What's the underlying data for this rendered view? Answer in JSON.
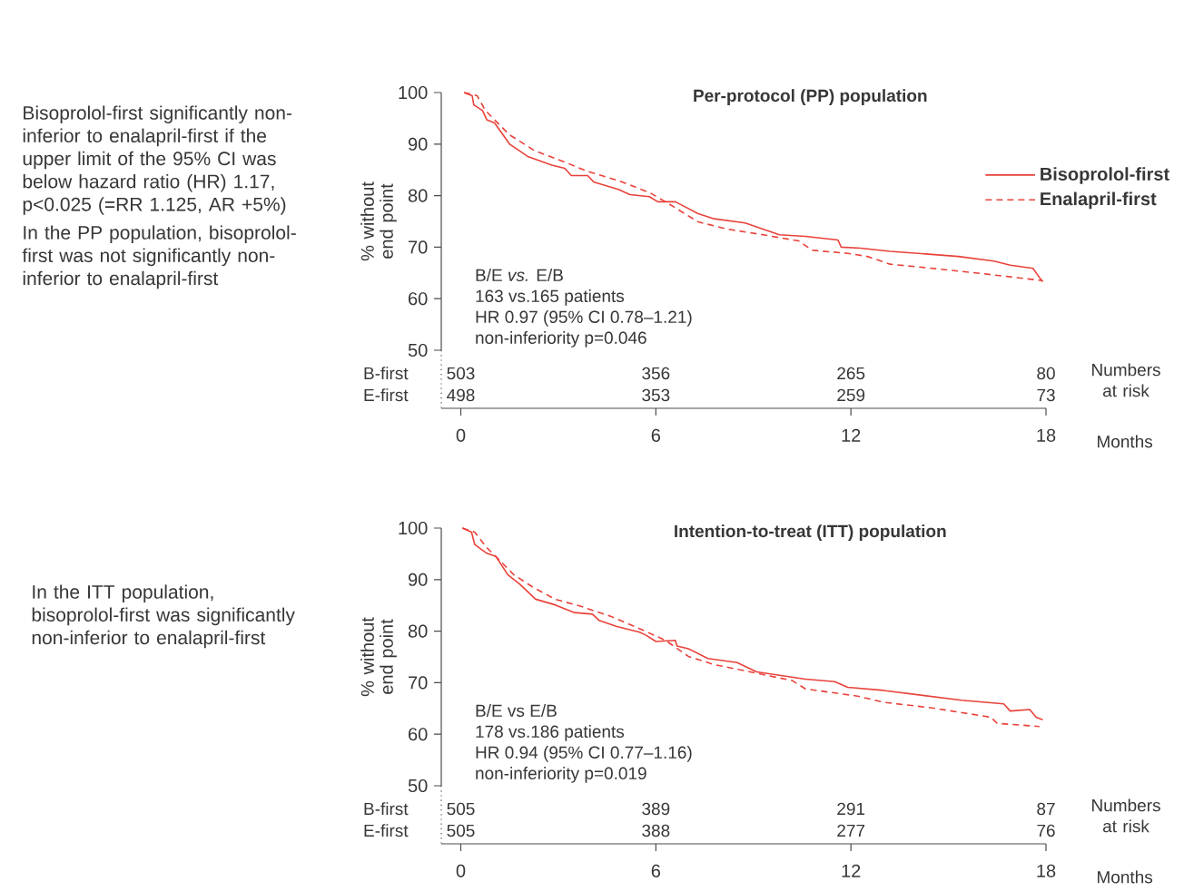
{
  "chart_data": [
    {
      "type": "line",
      "title": "Per-protocol (PP) population",
      "xlabel": "Months",
      "ylabel": "% without end point",
      "xlim": [
        -0.6,
        18
      ],
      "ylim": [
        50,
        100
      ],
      "xticks": [
        0,
        6,
        12,
        18
      ],
      "yticks": [
        50,
        60,
        70,
        80,
        90,
        100
      ],
      "legend": "top right",
      "grid": false,
      "series": [
        {
          "name": "Bisoprolol-first",
          "color": "#e8423a",
          "line_style": "solid",
          "x": [
            0.1,
            0.35,
            0.4,
            0.67,
            0.8,
            1.04,
            1.5,
            2.06,
            2.8,
            3.2,
            3.4,
            3.9,
            4.1,
            4.85,
            5.2,
            5.8,
            6.06,
            6.6,
            7.3,
            7.8,
            8.75,
            9.8,
            10.6,
            11.6,
            11.7,
            12.3,
            13.2,
            15.3,
            16.4,
            16.9,
            17.6,
            17.8,
            17.9
          ],
          "values": [
            100,
            99.4,
            97.6,
            96.5,
            94.7,
            94.1,
            90,
            87.6,
            85.9,
            85.3,
            83.9,
            83.9,
            82.6,
            81.2,
            80.2,
            79.8,
            78.8,
            78.8,
            76.5,
            75.5,
            74.7,
            72.4,
            72.1,
            71.4,
            70,
            69.8,
            69.2,
            68.2,
            67.3,
            66.5,
            65.9,
            64.1,
            63.3
          ]
        },
        {
          "name": "Enalapril-first",
          "color": "#e8423a",
          "line_style": "dashed",
          "x": [
            0.1,
            0.5,
            0.76,
            1.23,
            1.5,
            2.25,
            3.2,
            3.9,
            4.85,
            5.8,
            6.3,
            7.3,
            8.2,
            9.3,
            10.4,
            10.8,
            11.9,
            12.5,
            13.2,
            14.5,
            16,
            17.9
          ],
          "values": [
            100,
            99.4,
            96.5,
            93.5,
            91.8,
            88.8,
            86.5,
            84.7,
            82.9,
            80.6,
            78.8,
            74.9,
            73.5,
            72.4,
            71.2,
            69.4,
            68.8,
            68.2,
            66.7,
            65.9,
            64.9,
            63.5
          ]
        }
      ],
      "annotations": [
        "Bisoprolol-first significantly non-inferior to enalapril-first if the upper limit of the 95% CI was below hazard ratio (HR) 1.17, p<0.025 (=RR 1.125, AR +5%)",
        "In the PP population, bisoprolol-first was not significantly non-inferior to enalapril-first",
        "B/E *vs.* E/B",
        "163 vs.165 patients",
        "HR 0.97 (95% CI 0.78–1.21)",
        "non-inferiority p=0.046",
        "B-first",
        "503",
        "356",
        "265",
        "80",
        "E-first",
        "498",
        "353",
        "259",
        "73",
        "Numbers at risk"
      ]
    },
    {
      "type": "line",
      "title": "Intention-to-treat (ITT) population",
      "xlabel": "Months",
      "ylabel": "% without end point",
      "xlim": [
        -0.6,
        18
      ],
      "ylim": [
        50,
        100
      ],
      "xticks": [
        0,
        6,
        12,
        18
      ],
      "yticks": [
        50,
        60,
        70,
        80,
        90,
        100
      ],
      "grid": false,
      "series": [
        {
          "color": "#e8423a",
          "line_style": "solid",
          "x": [
            0.05,
            0.33,
            0.43,
            0.8,
            1.08,
            1.45,
            1.8,
            2,
            2.3,
            2.9,
            3.5,
            4.05,
            4.25,
            4.8,
            5.5,
            5.7,
            6,
            6.6,
            6.65,
            7,
            7.6,
            8.5,
            9.1,
            10.6,
            11.5,
            11.9,
            13,
            15.4,
            16.7,
            16.9,
            17.5,
            17.7,
            17.9
          ],
          "values": [
            100,
            99.2,
            96.8,
            95.1,
            94.5,
            90.9,
            89.2,
            88,
            86.2,
            85.1,
            83.6,
            83.3,
            82.1,
            80.9,
            79.8,
            79.2,
            78,
            78.2,
            77.1,
            76.6,
            74.7,
            73.9,
            72.1,
            70.7,
            70.2,
            69.1,
            68.5,
            66.6,
            65.9,
            64.5,
            64.8,
            63.3,
            62.8
          ]
        },
        {
          "color": "#e8423a",
          "line_style": "dashed",
          "x": [
            0.05,
            0.43,
            0.8,
            1.17,
            1.64,
            2.2,
            2.9,
            3.7,
            4.6,
            5.35,
            6.3,
            7,
            7.8,
            8.9,
            10.2,
            10.6,
            12.2,
            13,
            14.5,
            16.3,
            16.5,
            17.8
          ],
          "values": [
            100,
            99.2,
            96.2,
            93.9,
            90.9,
            88.6,
            86.2,
            84.8,
            82.9,
            80.9,
            78.2,
            75.1,
            73.5,
            72.1,
            70.4,
            68.8,
            67.4,
            66.2,
            65.1,
            63.3,
            62.1,
            61.5
          ]
        }
      ],
      "annotations": [
        "In the ITT population, bisoprolol-first was significantly non-inferior to enalapril-first",
        "B/E vs E/B",
        "178 vs.186 patients",
        "HR 0.94 (95% CI 0.77–1.16)",
        "non-inferiority p=0.019",
        "B-first",
        "505",
        "389",
        "291",
        "87",
        "E-first",
        "505",
        "388",
        "277",
        "76",
        "Numbers at risk"
      ]
    }
  ]
}
